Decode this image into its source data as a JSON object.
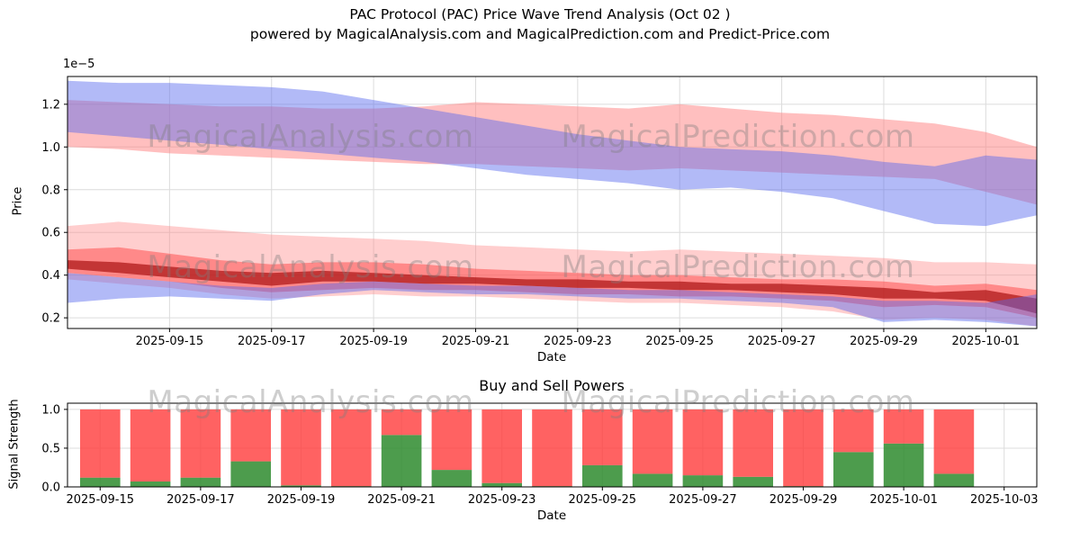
{
  "title": {
    "line1": "PAC Protocol (PAC) Price Wave Trend Analysis (Oct 02 )",
    "line2": "powered by MagicalAnalysis.com and MagicalPrediction.com and Predict-Price.com"
  },
  "watermarks": [
    "MagicalAnalysis.com",
    "MagicalPrediction.com"
  ],
  "colors": {
    "grid": "#dcdcdc",
    "spine": "#000000",
    "band_blue": "#5566ee",
    "band_pink": "#ff8080",
    "band_red": "#ff4444",
    "band_dark_red": "#aa1111",
    "bar_buy_green": "#2e8b2e",
    "bar_sell_red": "#ff3b3b"
  },
  "chart_data": [
    {
      "type": "area",
      "name": "price-wave-chart",
      "title": "",
      "xlabel": "Date",
      "ylabel": "Price",
      "y_offset_text": "1e−5",
      "grid": true,
      "legend": "none",
      "ylim": [
        0.15,
        1.33
      ],
      "yticks": [
        0.2,
        0.4,
        0.6,
        0.8,
        1.0,
        1.2
      ],
      "xlim": [
        0,
        19
      ],
      "x_unit": "day-index starting 2025-09-13",
      "xtick_positions": [
        2,
        4,
        6,
        8,
        10,
        12,
        14,
        16,
        18
      ],
      "xtick_labels": [
        "2025-09-15",
        "2025-09-17",
        "2025-09-19",
        "2025-09-21",
        "2025-09-23",
        "2025-09-25",
        "2025-09-27",
        "2025-09-29",
        "2025-10-01"
      ],
      "bands": [
        {
          "name": "trend-band-red-upper",
          "color": "#ff8080",
          "opacity": 0.5,
          "upper": [
            1.22,
            1.21,
            1.2,
            1.19,
            1.19,
            1.18,
            1.18,
            1.19,
            1.21,
            1.2,
            1.19,
            1.18,
            1.2,
            1.18,
            1.16,
            1.15,
            1.13,
            1.11,
            1.07,
            1.0
          ],
          "lower": [
            1.0,
            0.99,
            0.97,
            0.96,
            0.95,
            0.94,
            0.93,
            0.92,
            0.92,
            0.91,
            0.9,
            0.89,
            0.9,
            0.89,
            0.88,
            0.87,
            0.86,
            0.85,
            0.79,
            0.73
          ]
        },
        {
          "name": "wave-band-pink-outer",
          "color": "#ff8585",
          "opacity": 0.4,
          "upper": [
            0.63,
            0.65,
            0.63,
            0.61,
            0.59,
            0.58,
            0.57,
            0.56,
            0.54,
            0.53,
            0.52,
            0.51,
            0.52,
            0.51,
            0.5,
            0.49,
            0.48,
            0.46,
            0.46,
            0.45
          ],
          "lower": [
            0.38,
            0.36,
            0.34,
            0.31,
            0.29,
            0.3,
            0.31,
            0.3,
            0.3,
            0.29,
            0.28,
            0.27,
            0.27,
            0.26,
            0.25,
            0.23,
            0.19,
            0.2,
            0.19,
            0.16
          ]
        },
        {
          "name": "wave-band-red-mid",
          "color": "#ff4444",
          "opacity": 0.5,
          "upper": [
            0.52,
            0.53,
            0.5,
            0.47,
            0.45,
            0.46,
            0.46,
            0.45,
            0.43,
            0.42,
            0.41,
            0.4,
            0.4,
            0.39,
            0.38,
            0.38,
            0.37,
            0.35,
            0.36,
            0.33
          ],
          "lower": [
            0.41,
            0.39,
            0.37,
            0.34,
            0.32,
            0.33,
            0.34,
            0.33,
            0.33,
            0.32,
            0.31,
            0.31,
            0.3,
            0.3,
            0.29,
            0.28,
            0.25,
            0.26,
            0.25,
            0.2
          ]
        },
        {
          "name": "wave-band-red-core",
          "color": "#aa1111",
          "opacity": 0.7,
          "upper": [
            0.47,
            0.46,
            0.44,
            0.42,
            0.41,
            0.42,
            0.41,
            0.4,
            0.39,
            0.38,
            0.38,
            0.37,
            0.37,
            0.36,
            0.36,
            0.35,
            0.34,
            0.32,
            0.33,
            0.29
          ],
          "lower": [
            0.43,
            0.41,
            0.39,
            0.37,
            0.35,
            0.37,
            0.37,
            0.36,
            0.36,
            0.35,
            0.34,
            0.34,
            0.33,
            0.33,
            0.32,
            0.31,
            0.29,
            0.29,
            0.28,
            0.22
          ]
        },
        {
          "name": "trend-band-blue-upper",
          "color": "#5566ee",
          "opacity": 0.45,
          "upper": [
            1.31,
            1.3,
            1.3,
            1.29,
            1.28,
            1.26,
            1.22,
            1.18,
            1.14,
            1.1,
            1.06,
            1.03,
            1.0,
            0.99,
            0.98,
            0.96,
            0.93,
            0.91,
            0.96,
            0.94
          ],
          "lower": [
            1.07,
            1.05,
            1.03,
            1.01,
            0.99,
            0.97,
            0.95,
            0.93,
            0.9,
            0.87,
            0.85,
            0.83,
            0.8,
            0.81,
            0.79,
            0.76,
            0.7,
            0.64,
            0.63,
            0.68
          ]
        },
        {
          "name": "wave-band-blue-lower",
          "color": "#5566ee",
          "opacity": 0.45,
          "upper": [
            0.41,
            0.39,
            0.37,
            0.35,
            0.34,
            0.36,
            0.37,
            0.36,
            0.35,
            0.35,
            0.34,
            0.33,
            0.33,
            0.32,
            0.31,
            0.3,
            0.28,
            0.28,
            0.27,
            0.31
          ],
          "lower": [
            0.27,
            0.29,
            0.3,
            0.29,
            0.28,
            0.31,
            0.33,
            0.32,
            0.31,
            0.31,
            0.3,
            0.29,
            0.29,
            0.28,
            0.27,
            0.25,
            0.18,
            0.19,
            0.18,
            0.16
          ]
        }
      ]
    },
    {
      "type": "bar",
      "name": "buy-sell-power-chart",
      "title": "Buy and Sell Powers",
      "xlabel": "Date",
      "ylabel": "Signal Strength",
      "stacked": true,
      "grid": true,
      "ylim": [
        0,
        1.08
      ],
      "yticks": [
        0.0,
        0.5,
        1.0
      ],
      "xlim": [
        -0.65,
        18.65
      ],
      "bar_width": 0.8,
      "xtick_positions": [
        0,
        2,
        4,
        6,
        8,
        10,
        12,
        14,
        16,
        18
      ],
      "xtick_labels": [
        "2025-09-15",
        "2025-09-17",
        "2025-09-19",
        "2025-09-21",
        "2025-09-23",
        "2025-09-25",
        "2025-09-27",
        "2025-09-29",
        "2025-10-01",
        "2025-10-03"
      ],
      "categories": [
        "2025-09-15",
        "2025-09-16",
        "2025-09-17",
        "2025-09-18",
        "2025-09-19",
        "2025-09-20",
        "2025-09-21",
        "2025-09-22",
        "2025-09-23",
        "2025-09-24",
        "2025-09-25",
        "2025-09-26",
        "2025-09-27",
        "2025-09-28",
        "2025-09-29",
        "2025-09-30",
        "2025-10-01",
        "2025-10-02"
      ],
      "series": [
        {
          "name": "buy-power",
          "color": "#2e8b2e",
          "opacity": 0.85,
          "values": [
            0.12,
            0.07,
            0.12,
            0.33,
            0.02,
            0.01,
            0.67,
            0.22,
            0.05,
            0.01,
            0.28,
            0.17,
            0.15,
            0.13,
            0.01,
            0.45,
            0.56,
            0.17
          ]
        },
        {
          "name": "sell-power",
          "color": "#ff3b3b",
          "opacity": 0.8,
          "values": [
            0.88,
            0.93,
            0.88,
            0.67,
            0.98,
            0.99,
            0.33,
            0.78,
            0.95,
            0.99,
            0.72,
            0.83,
            0.85,
            0.87,
            0.99,
            0.55,
            0.44,
            0.83
          ]
        }
      ]
    }
  ]
}
